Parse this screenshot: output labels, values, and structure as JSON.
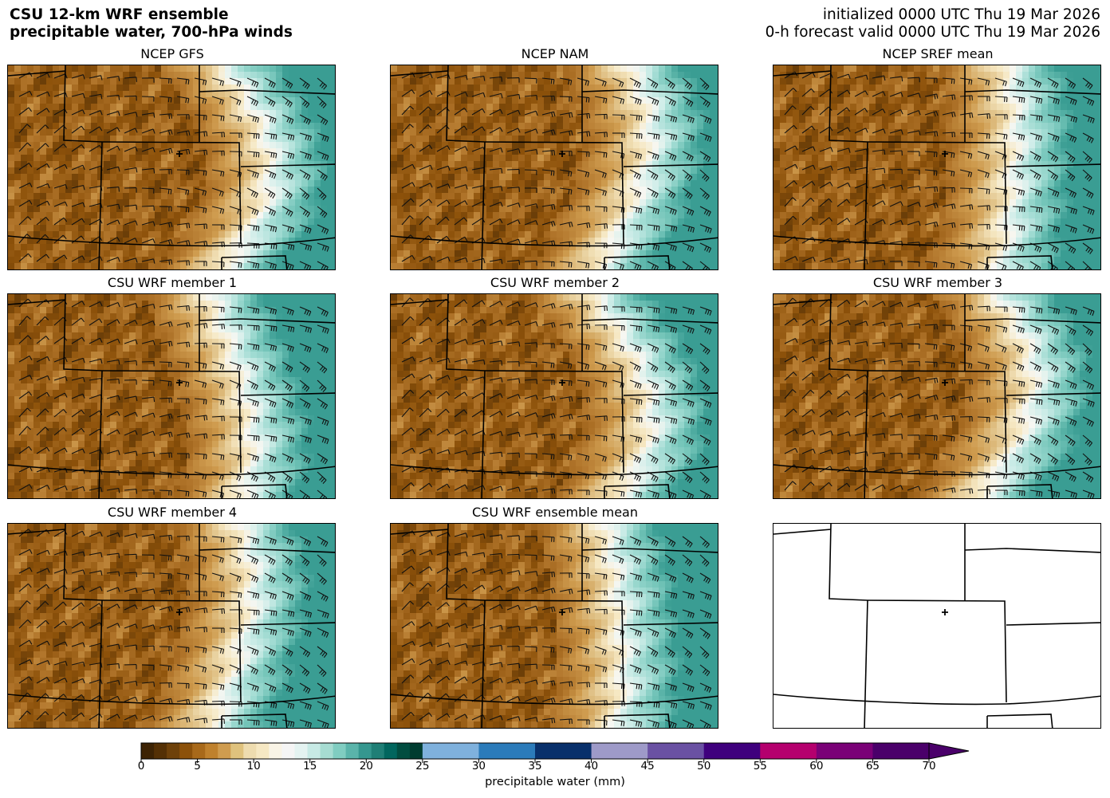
{
  "header": {
    "title_line1": "CSU 12-km WRF ensemble",
    "title_line2": "precipitable water, 700-hPa winds",
    "init_text": "initialized 0000 UTC Thu 19 Mar 2026",
    "valid_text": "0-h forecast valid 0000 UTC Thu 19 Mar 2026"
  },
  "panels": [
    {
      "title": "NCEP GFS",
      "has_data": true
    },
    {
      "title": "NCEP NAM",
      "has_data": true
    },
    {
      "title": "NCEP SREF mean",
      "has_data": true
    },
    {
      "title": "CSU WRF member 1",
      "has_data": true
    },
    {
      "title": "CSU WRF member 2",
      "has_data": true
    },
    {
      "title": "CSU WRF member 3",
      "has_data": true
    },
    {
      "title": "CSU WRF member 4",
      "has_data": true
    },
    {
      "title": "CSU WRF ensemble mean",
      "has_data": true
    },
    {
      "title": "",
      "has_data": false
    }
  ],
  "colorbar": {
    "label": "precipitable water (mm)",
    "min": 0,
    "max": 70,
    "extend": "max",
    "ticks": [
      "0",
      "5",
      "10",
      "15",
      "20",
      "25",
      "30",
      "35",
      "40",
      "45",
      "50",
      "55",
      "60",
      "65",
      "70"
    ],
    "segments": [
      {
        "from": 0,
        "to": 25,
        "colors": [
          "#3d2304",
          "#543005",
          "#6e410a",
          "#8c510a",
          "#a8691a",
          "#bf812d",
          "#cf9c4f",
          "#dfc27d",
          "#eedcaf",
          "#f6e8c3",
          "#f9f4e6",
          "#f5f5f5",
          "#e4f3f1",
          "#c7eae5",
          "#a6dcd2",
          "#80cdc1",
          "#5ab4aa",
          "#35978f",
          "#1f7f76",
          "#01665e",
          "#014d40",
          "#003c30"
        ]
      },
      {
        "from": 25,
        "to": 40,
        "colors": [
          "#7fb1dd",
          "#2b7bba",
          "#08306b"
        ]
      },
      {
        "from": 40,
        "to": 55,
        "colors": [
          "#9e9ac8",
          "#6a51a3",
          "#3f007d"
        ]
      },
      {
        "from": 55,
        "to": 70,
        "colors": [
          "#b5006e",
          "#7a0177",
          "#4a006a"
        ]
      }
    ]
  }
}
